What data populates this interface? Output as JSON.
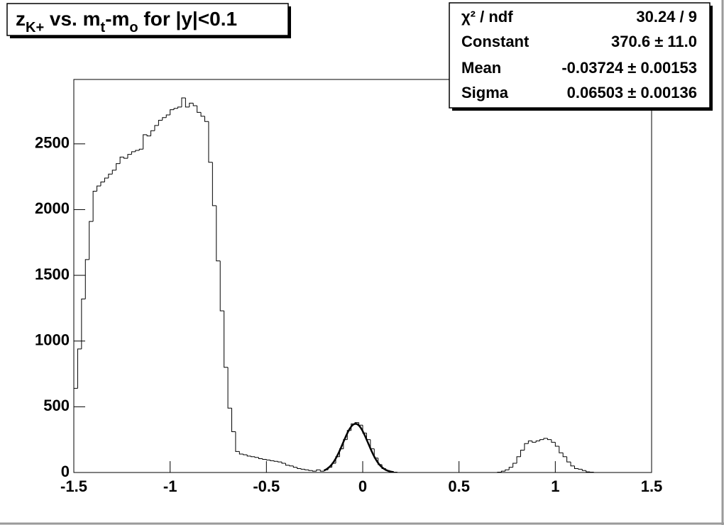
{
  "chart_data": {
    "type": "histogram",
    "title": [
      {
        "text": "z"
      },
      {
        "text": "K+",
        "sub": true
      },
      {
        "text": " vs. m"
      },
      {
        "text": "t",
        "sub": true
      },
      {
        "text": "-m"
      },
      {
        "text": "o",
        "sub": true
      },
      {
        "text": " for |y|<0.1"
      }
    ],
    "color": "#000000",
    "bins": [
      -1.5,
      -1.48,
      -1.46,
      -1.44,
      -1.42,
      -1.4,
      -1.38,
      -1.36,
      -1.34,
      -1.32,
      -1.3,
      -1.28,
      -1.26,
      -1.24,
      -1.22,
      -1.2,
      -1.18,
      -1.16,
      -1.14,
      -1.12,
      -1.1,
      -1.08,
      -1.06,
      -1.04,
      -1.02,
      -1,
      -0.98,
      -0.96,
      -0.94,
      -0.92,
      -0.9,
      -0.88,
      -0.86,
      -0.84,
      -0.82,
      -0.8,
      -0.78,
      -0.76,
      -0.74,
      -0.72,
      -0.7,
      -0.68,
      -0.66,
      -0.64,
      -0.62,
      -0.6,
      -0.58,
      -0.56,
      -0.54,
      -0.52,
      -0.5,
      -0.48,
      -0.46,
      -0.44,
      -0.42,
      -0.4,
      -0.38,
      -0.36,
      -0.34,
      -0.32,
      -0.3,
      -0.28,
      -0.26,
      -0.24,
      -0.22,
      -0.2,
      -0.18,
      -0.16,
      -0.14,
      -0.12,
      -0.1,
      -0.08,
      -0.06,
      -0.04,
      -0.02,
      0,
      0.02,
      0.04,
      0.06,
      0.08,
      0.1,
      0.12,
      0.14,
      0.16,
      0.18,
      0.2,
      0.22,
      0.24,
      0.26,
      0.28,
      0.3,
      0.32,
      0.34,
      0.36,
      0.38,
      0.4,
      0.42,
      0.44,
      0.46,
      0.48,
      0.5,
      0.52,
      0.54,
      0.56,
      0.58,
      0.6,
      0.62,
      0.64,
      0.66,
      0.68,
      0.7,
      0.72,
      0.74,
      0.76,
      0.78,
      0.8,
      0.82,
      0.84,
      0.86,
      0.88,
      0.9,
      0.92,
      0.94,
      0.96,
      0.98,
      1,
      1.02,
      1.04,
      1.06,
      1.08,
      1.1,
      1.12,
      1.14,
      1.16,
      1.18,
      1.2,
      1.22,
      1.24,
      1.26,
      1.28,
      1.3,
      1.32,
      1.34,
      1.36,
      1.38,
      1.4,
      1.42,
      1.44,
      1.46,
      1.48,
      1.5
    ],
    "values": [
      640,
      940,
      1320,
      1620,
      1910,
      2140,
      2180,
      2210,
      2240,
      2270,
      2300,
      2350,
      2400,
      2390,
      2420,
      2440,
      2450,
      2460,
      2570,
      2560,
      2600,
      2640,
      2680,
      2700,
      2720,
      2760,
      2770,
      2780,
      2850,
      2780,
      2810,
      2790,
      2740,
      2710,
      2670,
      2360,
      2030,
      1610,
      1230,
      800,
      490,
      310,
      160,
      140,
      135,
      125,
      120,
      115,
      105,
      100,
      95,
      90,
      85,
      80,
      70,
      55,
      50,
      40,
      30,
      25,
      20,
      15,
      10,
      20,
      10,
      20,
      40,
      70,
      120,
      180,
      250,
      320,
      370,
      380,
      360,
      300,
      250,
      180,
      110,
      60,
      30,
      15,
      8,
      3,
      0,
      0,
      0,
      0,
      0,
      0,
      0,
      0,
      0,
      0,
      0,
      0,
      0,
      0,
      0,
      0,
      0,
      0,
      0,
      0,
      0,
      0,
      0,
      0,
      0,
      0,
      3,
      10,
      20,
      40,
      70,
      120,
      170,
      220,
      240,
      230,
      240,
      250,
      260,
      250,
      230,
      200,
      150,
      120,
      80,
      50,
      30,
      25,
      15,
      5,
      3,
      0,
      0,
      0,
      0,
      0,
      0,
      0,
      0,
      0,
      0,
      0,
      0,
      0,
      0,
      0
    ],
    "xlim": [
      -1.5,
      1.5
    ],
    "ylim": [
      0,
      2990
    ],
    "xticks": [
      -1.5,
      -1,
      -0.5,
      0,
      0.5,
      1,
      1.5
    ],
    "yticks": [
      0,
      500,
      1000,
      1500,
      2000,
      2500
    ],
    "fit": {
      "color": "#000000",
      "range": [
        -0.2,
        0.16
      ]
    },
    "stats": [
      {
        "label": "χ² / ndf",
        "value": "30.24 / 9"
      },
      {
        "label": "Constant",
        "value": {
          "value": 370.6,
          "error": 11.0,
          "label": "370.6 ± 11.0"
        }
      },
      {
        "label": "Mean",
        "value": {
          "value": -0.03724,
          "error": 0.00153,
          "label": "-0.03724 ± 0.00153"
        }
      },
      {
        "label": "Sigma",
        "value": {
          "value": 0.06503,
          "error": 0.00136,
          "label": "0.06503 ± 0.00136"
        }
      }
    ]
  }
}
